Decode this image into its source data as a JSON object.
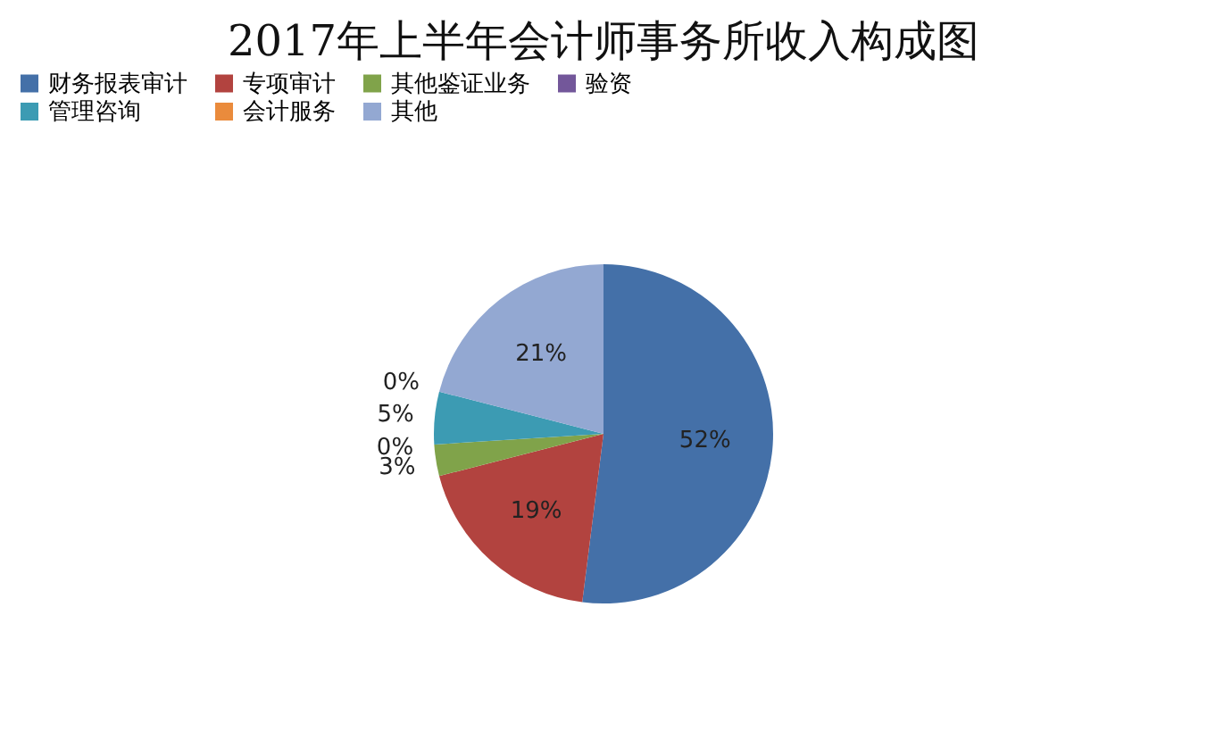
{
  "chart_data": {
    "type": "pie",
    "title": "2017年上半年会计师事务所收入构成图",
    "categories": [
      "财务报表审计",
      "专项审计",
      "其他鉴证业务",
      "验资",
      "管理咨询",
      "会计服务",
      "其他"
    ],
    "values": [
      52,
      19,
      3,
      0,
      5,
      0,
      21
    ],
    "colors": [
      "#4470a8",
      "#b2433f",
      "#80a34a",
      "#73579a",
      "#3c9bb3",
      "#ea8b3c",
      "#93a8d2"
    ],
    "value_labels": [
      "52%",
      "19%",
      "3%",
      "0%",
      "5%",
      "0%",
      "21%"
    ],
    "legend": "top"
  }
}
